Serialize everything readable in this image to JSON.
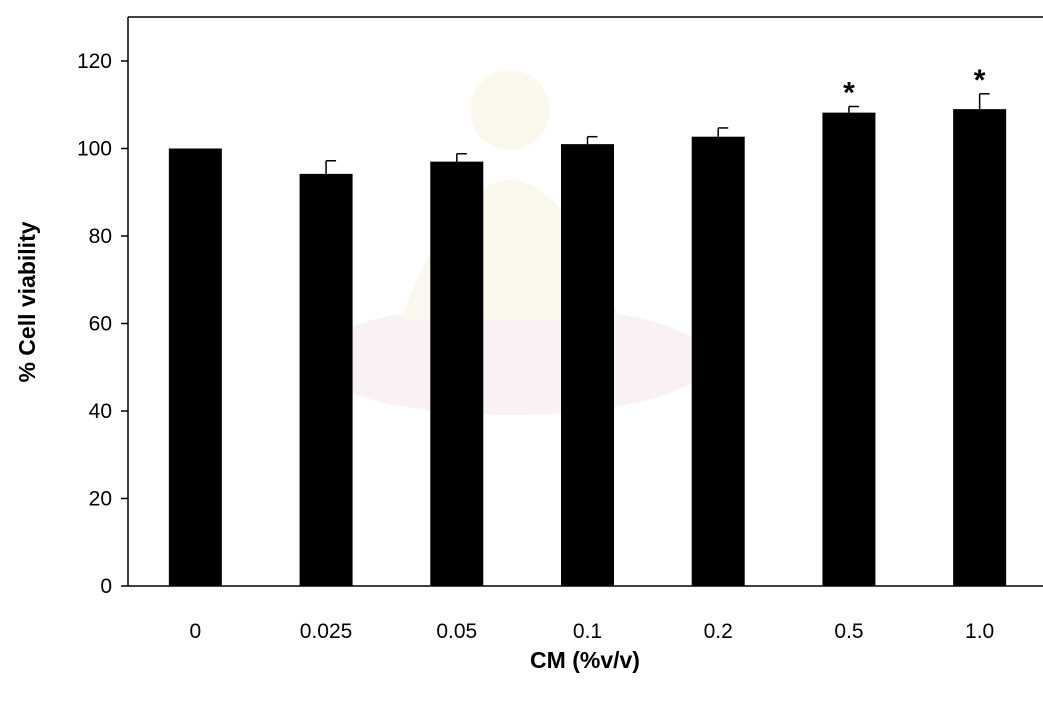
{
  "chart_data": {
    "type": "bar",
    "categories": [
      "0",
      "0.025",
      "0.05",
      "0.1",
      "0.2",
      "0.5",
      "1.0"
    ],
    "values": [
      100,
      94.2,
      97,
      101,
      102.7,
      108.2,
      109
    ],
    "errors": [
      0,
      3,
      1.8,
      1.7,
      2,
      1.4,
      3.5
    ],
    "significance": [
      "",
      "",
      "",
      "",
      "",
      "*",
      "*"
    ],
    "xlabel": "CM (%v/v)",
    "ylabel": "% Cell viability",
    "ylim": [
      0,
      120
    ],
    "yticks": [
      "0",
      "20",
      "40",
      "60",
      "80",
      "100",
      "120"
    ],
    "grid": false,
    "colors": {
      "bar": "#000000",
      "axis": "#000000",
      "watermark": "#c9a9c9"
    }
  }
}
